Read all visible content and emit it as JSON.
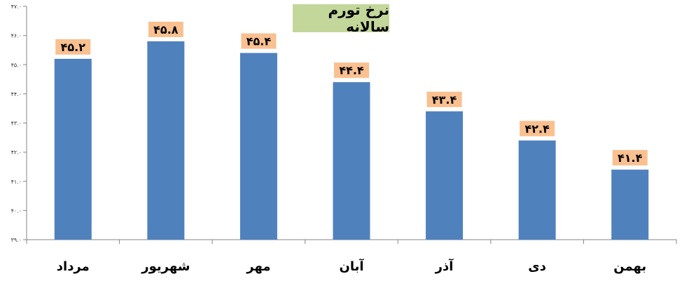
{
  "chart_data": {
    "type": "bar",
    "title": "نرخ تورم سالانه",
    "categories": [
      "مرداد",
      "شهریور",
      "مهر",
      "آبان",
      "آذر",
      "دی",
      "بهمن"
    ],
    "values": [
      45.2,
      45.8,
      45.4,
      44.4,
      43.4,
      42.4,
      41.4
    ],
    "data_labels": [
      "۴۵.۲",
      "۴۵.۸",
      "۴۵.۴",
      "۴۴.۴",
      "۴۳.۴",
      "۴۲.۴",
      "۴۱.۴"
    ],
    "ylim": [
      39,
      47
    ],
    "yticks": [
      39,
      40,
      41,
      42,
      43,
      44,
      45,
      46,
      47
    ],
    "ytick_labels": [
      "۳۹.۰",
      "۴۰.۰",
      "۴۱.۰",
      "۴۲.۰",
      "۴۳.۰",
      "۴۴.۰",
      "۴۵.۰",
      "۴۶.۰",
      "۴۷.۰"
    ],
    "xlabel": "",
    "ylabel": "",
    "grid": false,
    "legend": "none",
    "colors": {
      "bar": "#4f81bd",
      "data_label_bg": "#fac090",
      "title_bg": "#c4d79b",
      "axis": "#868686"
    }
  }
}
